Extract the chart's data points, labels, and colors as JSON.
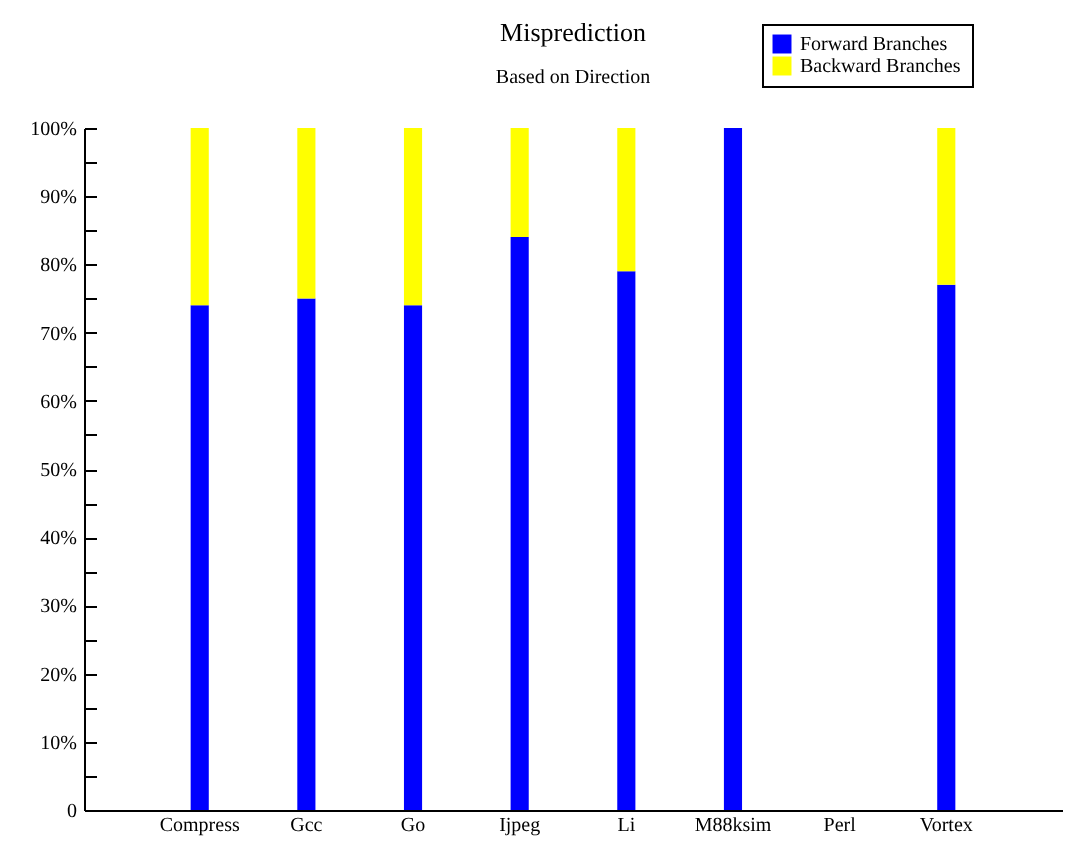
{
  "chart_data": {
    "type": "bar",
    "title": "Misprediction",
    "subtitle": "Based on Direction",
    "stacked": true,
    "legend": "top right",
    "categories": [
      "Compress",
      "Gcc",
      "Go",
      "Ijpeg",
      "Li",
      "M88ksim",
      "Perl",
      "Vortex"
    ],
    "series": [
      {
        "name": "Forward Branches",
        "color": "#0000ff",
        "values": [
          74,
          75,
          74,
          84,
          79,
          100,
          null,
          77
        ]
      },
      {
        "name": "Backward Branches",
        "color": "#ffff00",
        "values": [
          26,
          25,
          26,
          16,
          21,
          0,
          null,
          23
        ]
      }
    ],
    "ylim": [
      0,
      100
    ],
    "yticks": [
      {
        "value": 0,
        "label": "0"
      },
      {
        "value": 5,
        "label": null
      },
      {
        "value": 10,
        "label": "10%"
      },
      {
        "value": 15,
        "label": null
      },
      {
        "value": 20,
        "label": "20%"
      },
      {
        "value": 25,
        "label": null
      },
      {
        "value": 30,
        "label": "30%"
      },
      {
        "value": 35,
        "label": null
      },
      {
        "value": 40,
        "label": "40%"
      },
      {
        "value": 45,
        "label": null
      },
      {
        "value": 50,
        "label": "50%"
      },
      {
        "value": 55,
        "label": null
      },
      {
        "value": 60,
        "label": "60%"
      },
      {
        "value": 65,
        "label": null
      },
      {
        "value": 70,
        "label": "70%"
      },
      {
        "value": 75,
        "label": null
      },
      {
        "value": 80,
        "label": "80%"
      },
      {
        "value": 85,
        "label": null
      },
      {
        "value": 90,
        "label": "90%"
      },
      {
        "value": 95,
        "label": null
      },
      {
        "value": 100,
        "label": "100%"
      }
    ]
  }
}
